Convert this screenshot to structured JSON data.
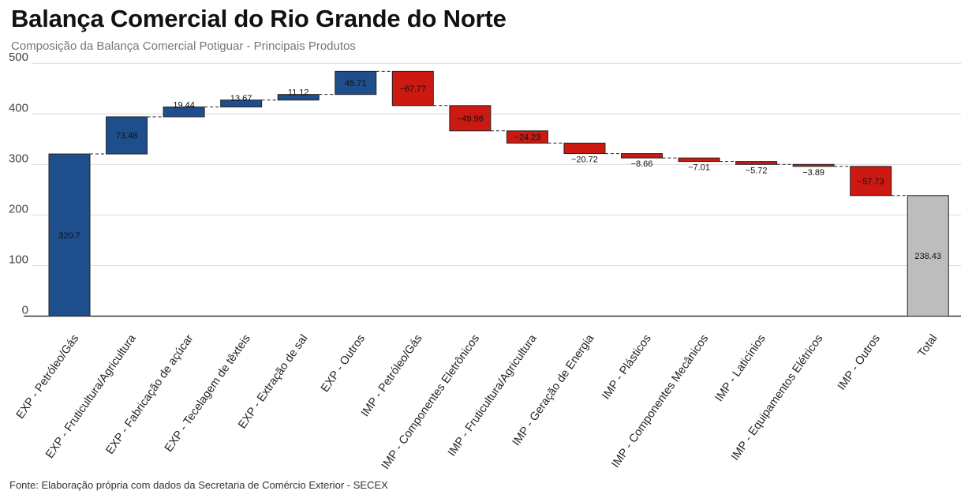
{
  "title": "Balança Comercial do Rio Grande do Norte",
  "subtitle": "Composição da Balança Comercial Potiguar - Principais Produtos",
  "caption": "Fonte: Elaboração própria com dados da Secretaria de Comércio Exterior - SECEX",
  "colors": {
    "export": "#1f4e8c",
    "import": "#cc1a12",
    "total": "#bdbdbd",
    "border": "#222222",
    "grid": "#d9d9d9"
  },
  "chart_data": {
    "type": "waterfall",
    "ylim": [
      0,
      500
    ],
    "yticks": [
      0,
      100,
      200,
      300,
      400,
      500
    ],
    "grid": true,
    "categories": [
      "EXP - Petróleo/Gás",
      "EXP - Fruticultura/Agricultura",
      "EXP - Fabricação de açúcar",
      "EXP - Tecelagem de têxteis",
      "EXP - Extração de sal",
      "EXP - Outros",
      "IMP - Petróleo/Gás",
      "IMP - Componentes Eletrônicos",
      "IMP - Fruticultura/Agricultura",
      "IMP - Geração de Energia",
      "IMP - Plásticos",
      "IMP - Componentes Mecânicos",
      "IMP - Laticínios",
      "IMP - Equipamentos Elétricos",
      "IMP - Outros",
      "Total"
    ],
    "values": [
      320.7,
      73.48,
      19.44,
      13.67,
      11.12,
      45.71,
      -67.77,
      -49.96,
      -24.23,
      -20.72,
      -8.66,
      -7.01,
      -5.72,
      -3.89,
      -57.73,
      238.43
    ],
    "labels": [
      "320.7",
      "73.48",
      "19.44",
      "13.67",
      "11.12",
      "45.71",
      "−67.77",
      "−49.96",
      "−24.23",
      "−20.72",
      "−8.66",
      "−7.01",
      "−5.72",
      "−3.89",
      "−57.73",
      "238.43"
    ],
    "kinds": [
      "export",
      "export",
      "export",
      "export",
      "export",
      "export",
      "import",
      "import",
      "import",
      "import",
      "import",
      "import",
      "import",
      "import",
      "import",
      "total"
    ]
  }
}
